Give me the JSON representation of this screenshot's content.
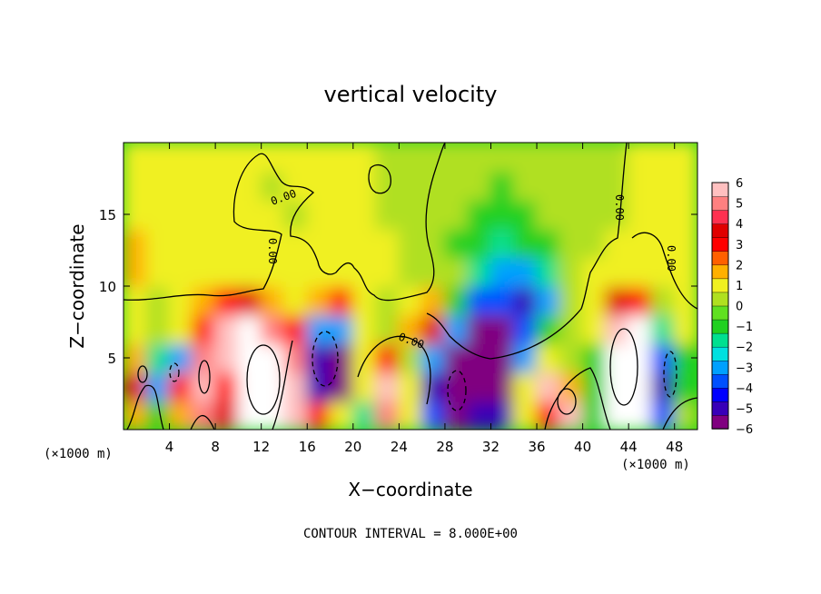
{
  "chart_data": {
    "type": "heatmap",
    "title": "vertical velocity",
    "xlabel": "X−coordinate",
    "ylabel": "Z−coordinate",
    "x_unit_left": "(×1000 m)",
    "x_unit_right": "(×1000 m)",
    "xlim": [
      0,
      50
    ],
    "ylim": [
      0,
      20
    ],
    "x_ticks": [
      4,
      8,
      12,
      16,
      20,
      24,
      28,
      32,
      36,
      40,
      44,
      48
    ],
    "y_ticks": [
      5,
      10,
      15
    ],
    "footer": "CONTOUR INTERVAL = 8.000E+00",
    "contour_labels": [
      "0.00",
      "0.00",
      "0.00",
      "0.00",
      "0.00"
    ],
    "colorbar": {
      "ticks": [
        "6",
        "5",
        "4",
        "3",
        "2",
        "1",
        "0",
        "−1",
        "−2",
        "−3",
        "−4",
        "−5",
        "−6"
      ],
      "min": -6,
      "max": 6,
      "colors": [
        "#800080",
        "#3800b8",
        "#0000ff",
        "#0050ff",
        "#00a0ff",
        "#00e0e0",
        "#00e090",
        "#20d020",
        "#60e020",
        "#b0e020",
        "#f0f020",
        "#ffb000",
        "#ff6000",
        "#ff0000",
        "#e00000",
        "#ff3050",
        "#ff8080",
        "#ffc0c0"
      ]
    },
    "cells_x": [
      1,
      3,
      5,
      7,
      9,
      11,
      13,
      15,
      17,
      19,
      21,
      23,
      25,
      27,
      29,
      31,
      33,
      35,
      37,
      39,
      41,
      43,
      45,
      47,
      49
    ],
    "cells_z": [
      1,
      3,
      5,
      7,
      9,
      11,
      13,
      15,
      17,
      19
    ],
    "values": [
      [
        2,
        -1,
        2,
        5,
        4,
        7,
        8,
        6,
        3,
        1,
        -2,
        5,
        1,
        -4,
        -6,
        -5,
        -5,
        1,
        3,
        6,
        -1,
        8,
        7,
        -4,
        0
      ],
      [
        4,
        -3,
        3,
        6,
        3,
        8,
        8,
        6,
        -5,
        -7,
        1,
        6,
        1,
        -5,
        -7,
        -6,
        -6,
        1,
        6,
        2,
        -1,
        8,
        8,
        -5,
        -1
      ],
      [
        2,
        -2,
        -3,
        5,
        6,
        7,
        8,
        5,
        -5,
        -7,
        1,
        3,
        0,
        -3,
        -6,
        -7,
        -6,
        -3,
        1,
        0,
        -1,
        8,
        8,
        -4,
        -1
      ],
      [
        1,
        0,
        1,
        3,
        6,
        7,
        5,
        3,
        -3,
        -3,
        1,
        0,
        2,
        4,
        -3,
        -6,
        -6,
        -4,
        -1,
        0,
        1,
        6,
        7,
        -2,
        1
      ],
      [
        1,
        0,
        1,
        2,
        3,
        4,
        2,
        1,
        2,
        3,
        1,
        0,
        1,
        2,
        -1,
        -4,
        -4,
        -5,
        -3,
        0,
        1,
        4,
        3,
        0,
        1
      ],
      [
        2,
        1,
        1,
        1,
        1,
        1,
        1,
        1,
        1,
        1,
        1,
        1,
        0,
        0,
        0,
        -2,
        -3,
        -3,
        -2,
        0,
        1,
        1,
        1,
        1,
        1
      ],
      [
        2,
        1,
        1,
        1,
        1,
        1,
        1,
        1,
        1,
        1,
        1,
        1,
        0,
        0,
        -1,
        -1,
        -2,
        -1,
        -1,
        0,
        0,
        1,
        1,
        1,
        1
      ],
      [
        1,
        1,
        1,
        1,
        1,
        1,
        1,
        0,
        1,
        1,
        1,
        0,
        0,
        0,
        0,
        -1,
        -1,
        -1,
        0,
        0,
        0,
        0,
        1,
        1,
        1
      ],
      [
        1,
        1,
        1,
        1,
        1,
        1,
        0,
        1,
        1,
        1,
        1,
        0,
        0,
        0,
        0,
        0,
        -1,
        0,
        0,
        0,
        0,
        0,
        1,
        1,
        1
      ],
      [
        1,
        1,
        1,
        1,
        1,
        1,
        1,
        1,
        1,
        1,
        1,
        0,
        0,
        0,
        0,
        0,
        0,
        0,
        0,
        0,
        0,
        0,
        1,
        1,
        1
      ]
    ]
  }
}
